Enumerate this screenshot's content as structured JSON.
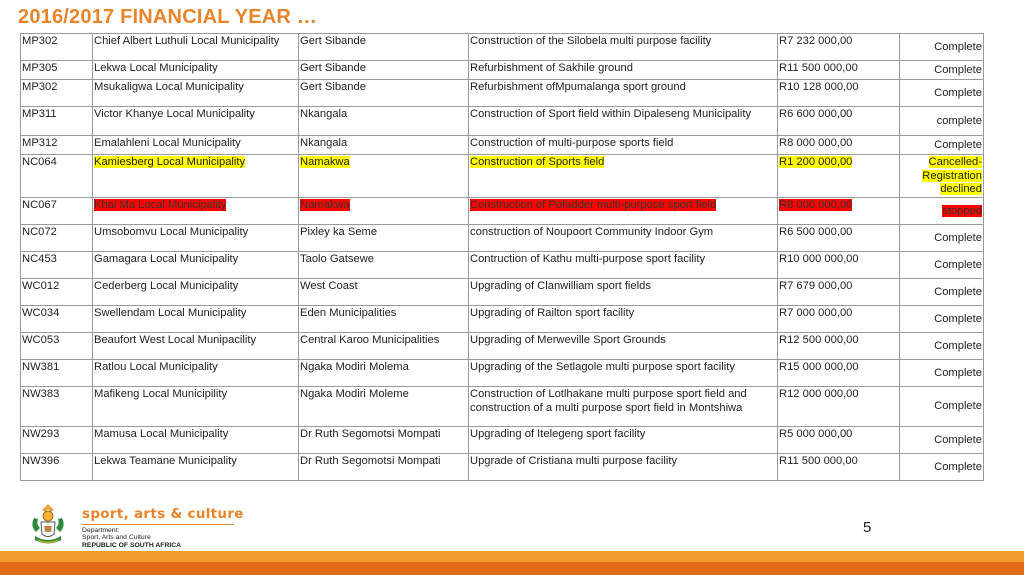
{
  "title": "2016/2017 FINANCIAL YEAR …",
  "rows": [
    {
      "code": "MP302",
      "municipality": "Chief Albert Luthuli Local Municipality",
      "district": "Gert Sibande",
      "project": " Construction of the Silobela multi purpose facility",
      "amount": "R7 232 000,00",
      "status": "Complete",
      "highlight": ""
    },
    {
      "code": "MP305",
      "municipality": "Lekwa Local Municipality",
      "district": "Gert Sibande",
      "project": "Refurbishment of Sakhile ground",
      "amount": "R11 500 000,00",
      "status": "Complete",
      "highlight": ""
    },
    {
      "code": "MP302",
      "municipality": "Msukaligwa Local Municipality",
      "district": "Gert Sibande",
      "project": "Refurbishment ofMpumalanga sport ground",
      "amount": "R10 128 000,00",
      "status": "Complete",
      "highlight": ""
    },
    {
      "code": "MP311",
      "municipality": "Victor Khanye Local Municipality",
      "district": "Nkangala",
      "project": "Construction of Sport field within Dipaleseng Municipality",
      "amount": "R6 600 000,00",
      "status": "complete",
      "highlight": ""
    },
    {
      "code": "MP312",
      "municipality": "Emalahleni Local Municipality",
      "district": "Nkangala",
      "project": " Construction of multi-purpose sports field",
      "amount": "R8 000 000,00",
      "status": "Complete",
      "highlight": ""
    },
    {
      "code": "NC064",
      "municipality": "Kamiesberg Local Municipality",
      "district": "Namakwa",
      "project": "Construction of Sports field",
      "amount": "R1 200 000,00",
      "status": "Cancelled-Registration declined",
      "highlight": "yellow"
    },
    {
      "code": "NC067",
      "municipality": "Khai Ma Local Municipality",
      "district": "Namakwa",
      "project": "Construction of Pofadder multi-purpose sport field",
      "amount": "R8 000 000,00",
      "status": "stopped",
      "highlight": "red"
    },
    {
      "code": "NC072",
      "municipality": "Umsobomvu Local Municipality",
      "district": "Pixley ka Seme",
      "project": "construction of Noupoort Community Indoor Gym",
      "amount": "R6 500 000,00",
      "status": "Complete",
      "highlight": ""
    },
    {
      "code": "NC453",
      "municipality": "Gamagara Local Municipality",
      "district": "Taolo Gatsewe",
      "project": "Contruction of Kathu multi-purpose sport facility",
      "amount": "R10 000 000,00",
      "status": "Complete",
      "highlight": ""
    },
    {
      "code": "WC012",
      "municipality": "Cederberg Local Municipality",
      "district": "West Coast",
      "project": "Upgrading of Clanwilliam sport fields",
      "amount": "R7 679 000,00",
      "status": "Complete",
      "highlight": ""
    },
    {
      "code": "WC034",
      "municipality": "Swellendam Local Municipality",
      "district": "Eden Municipalities",
      "project": "Upgrading of Railton sport facility",
      "amount": "R7 000 000,00",
      "status": "Complete",
      "highlight": ""
    },
    {
      "code": "WC053",
      "municipality": "Beaufort West Local Munipacility",
      "district": "Central Karoo Municipalities",
      "project": "Upgrading of Merweville Sport Grounds",
      "amount": "R12 500 000,00",
      "status": "Complete",
      "highlight": ""
    },
    {
      "code": "NW381",
      "municipality": "Ratlou Local Municipality",
      "district": " Ngaka Modiri Molema",
      "project": "Upgrading of the Setlagole multi purpose sport facility",
      "amount": "R15 000 000,00",
      "status": "Complete",
      "highlight": ""
    },
    {
      "code": "NW383",
      "municipality": "Mafikeng Local Municipility",
      "district": "Ngaka Modiri Moleme",
      "project": "Construction of Lotlhakane multi purpose sport field  and construction of a multi purpose sport field in Montshiwa",
      "amount": "R12 000 000,00",
      "status": "Complete",
      "highlight": ""
    },
    {
      "code": "NW293",
      "municipality": "Mamusa Local Municipality",
      "district": "Dr Ruth Segomotsi Mompati",
      "project": " Upgrading of Itelegeng sport facility",
      "amount": "R5 000 000,00",
      "status": "Complete",
      "highlight": ""
    },
    {
      "code": "NW396",
      "municipality": "Lekwa Teamane Municipality",
      "district": "Dr Ruth Segomotsi Mompati",
      "project": "Upgrade of Cristiana multi purpose facility",
      "amount": "R11 500 000,00",
      "status": "Complete",
      "highlight": ""
    }
  ],
  "footer": {
    "brand_name": "sport, arts & culture",
    "dept_line1": "Department:",
    "dept_line2": "Sport, Arts and Culture",
    "dept_line3": "REPUBLIC OF SOUTH AFRICA",
    "page_number": "5",
    "logo_icon": "coat-of-arms-icon"
  },
  "colors": {
    "title": "#e8852a",
    "highlight_yellow": "#ffff00",
    "highlight_red": "#ff0000",
    "bar_light": "#f29a2e",
    "bar_dark": "#e06a17"
  }
}
